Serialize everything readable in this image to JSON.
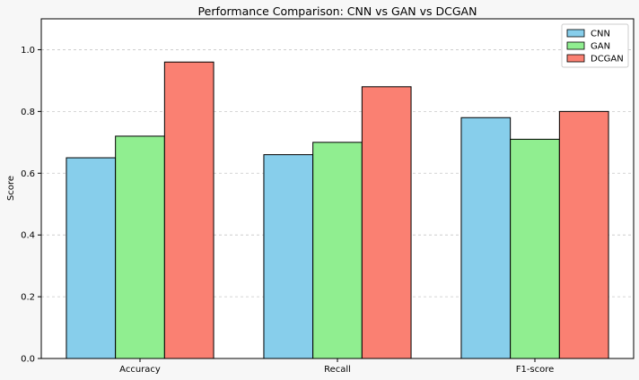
{
  "chart_data": {
    "type": "bar",
    "title": "Performance Comparison: CNN vs GAN vs DCGAN",
    "xlabel": "",
    "ylabel": "Score",
    "categories": [
      "Accuracy",
      "Recall",
      "F1-score"
    ],
    "series": [
      {
        "name": "CNN",
        "color": "#87ceeb",
        "values": [
          0.65,
          0.66,
          0.78
        ]
      },
      {
        "name": "GAN",
        "color": "#90ee90",
        "values": [
          0.72,
          0.7,
          0.71
        ]
      },
      {
        "name": "DCGAN",
        "color": "#fa8072",
        "values": [
          0.96,
          0.88,
          0.8
        ]
      }
    ],
    "ylim": [
      0,
      1.1
    ],
    "yticks": [
      "0.0",
      "0.2",
      "0.4",
      "0.6",
      "0.8",
      "1.0"
    ],
    "grid": "y-dashed",
    "legend": "top-right"
  }
}
